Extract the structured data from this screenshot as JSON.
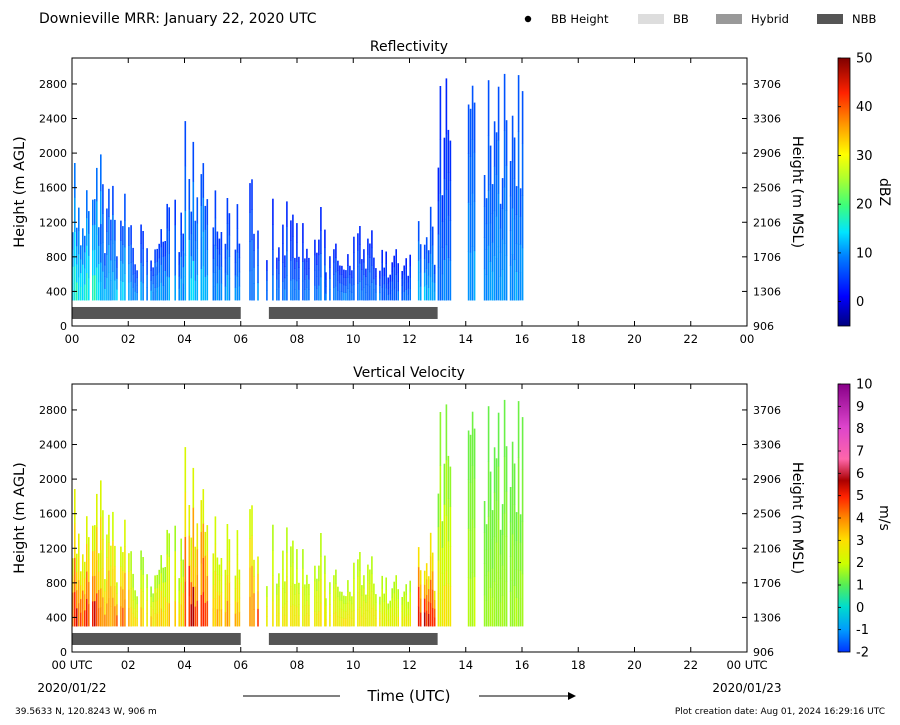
{
  "header": {
    "title": "Downieville MRR:  January 22, 2020 UTC",
    "legend": [
      {
        "label": "BB Height",
        "swatch": "dot",
        "color": "#000000"
      },
      {
        "label": "BB",
        "swatch": "rect",
        "color": "#dddddd"
      },
      {
        "label": "Hybrid",
        "swatch": "rect",
        "color": "#999999"
      },
      {
        "label": "NBB",
        "swatch": "rect",
        "color": "#555555"
      }
    ]
  },
  "footer": {
    "coords": "39.5633 N, 120.8243 W, 906 m",
    "created": "Plot creation date: Aug 01, 2024 16:29:16 UTC",
    "xlabel": "Time (UTC)",
    "start_date": "2020/01/22",
    "end_date": "2020/01/23"
  },
  "chart_data": [
    {
      "type": "heatmap",
      "title": "Reflectivity",
      "ylabel": "Height (m AGL)",
      "ylabel_right": "Height (m MSL)",
      "xlim": [
        0,
        24
      ],
      "ylim": [
        0,
        3100
      ],
      "x_ticks": [
        "00",
        "02",
        "04",
        "06",
        "08",
        "10",
        "12",
        "14",
        "16",
        "18",
        "20",
        "22",
        "00"
      ],
      "y_ticks": [
        0,
        400,
        800,
        1200,
        1600,
        2000,
        2400,
        2800
      ],
      "y_ticks_right": [
        906,
        1306,
        1706,
        2106,
        2506,
        2906,
        3306,
        3706
      ],
      "colorbar": {
        "label": "dBZ",
        "min": -5,
        "max": 50,
        "ticks": [
          0,
          10,
          20,
          30,
          40,
          50
        ]
      },
      "nbb_segments": [
        [
          0,
          6
        ],
        [
          7,
          13
        ]
      ],
      "echo_columns": [
        {
          "x": [
            0.0,
            1.0
          ],
          "top": 2050,
          "low": 6,
          "high": 18
        },
        {
          "x": [
            1.0,
            2.0
          ],
          "top": 1700,
          "low": 4,
          "high": 14
        },
        {
          "x": [
            2.0,
            3.0
          ],
          "top": 1250,
          "low": 3,
          "high": 12
        },
        {
          "x": [
            3.0,
            4.0
          ],
          "top": 1500,
          "low": 3,
          "high": 12
        },
        {
          "x": [
            4.0,
            5.0
          ],
          "top": 2500,
          "low": 4,
          "high": 15
        },
        {
          "x": [
            5.0,
            6.0
          ],
          "top": 1600,
          "low": 3,
          "high": 12
        },
        {
          "x": [
            6.3,
            6.6
          ],
          "top": 2100,
          "low": 3,
          "high": 11
        },
        {
          "x": [
            6.9,
            9.0
          ],
          "top": 1500,
          "low": 2,
          "high": 10
        },
        {
          "x": [
            9.0,
            11.0
          ],
          "top": 1200,
          "low": 2,
          "high": 10
        },
        {
          "x": [
            11.0,
            12.0
          ],
          "top": 900,
          "low": 2,
          "high": 9
        },
        {
          "x": [
            12.3,
            13.0
          ],
          "top": 1450,
          "low": 4,
          "high": 14
        },
        {
          "x": [
            13.0,
            13.5
          ],
          "top": 2900,
          "low": 2,
          "high": 10
        },
        {
          "x": [
            14.0,
            14.3
          ],
          "top": 3000,
          "low": 5,
          "high": 12
        },
        {
          "x": [
            14.5,
            16.0
          ],
          "top": 3000,
          "low": 5,
          "high": 12
        }
      ]
    },
    {
      "type": "heatmap",
      "title": "Vertical Velocity",
      "ylabel": "Height (m AGL)",
      "ylabel_right": "Height (m MSL)",
      "xlim": [
        0,
        24
      ],
      "ylim": [
        0,
        3100
      ],
      "x_ticks": [
        "00 UTC",
        "02",
        "04",
        "06",
        "08",
        "10",
        "12",
        "14",
        "16",
        "18",
        "20",
        "22",
        "00 UTC"
      ],
      "y_ticks": [
        0,
        400,
        800,
        1200,
        1600,
        2000,
        2400,
        2800
      ],
      "y_ticks_right": [
        906,
        1306,
        1706,
        2106,
        2506,
        2906,
        3306,
        3706
      ],
      "colorbar": {
        "label": "m/s",
        "min": -2,
        "max": 10,
        "ticks": [
          -2,
          -1,
          0,
          1,
          2,
          3,
          4,
          5,
          6,
          7,
          8,
          9,
          10
        ]
      },
      "nbb_segments": [
        [
          0,
          6
        ],
        [
          7,
          13
        ]
      ],
      "echo_columns": [
        {
          "x": [
            0.0,
            1.0
          ],
          "top": 2050,
          "low": 1.5,
          "high": 5.5
        },
        {
          "x": [
            1.0,
            2.0
          ],
          "top": 1700,
          "low": 1.5,
          "high": 4.5
        },
        {
          "x": [
            2.0,
            3.0
          ],
          "top": 1250,
          "low": 1.2,
          "high": 3.5
        },
        {
          "x": [
            3.0,
            4.0
          ],
          "top": 1500,
          "low": 1.2,
          "high": 3.5
        },
        {
          "x": [
            4.0,
            5.0
          ],
          "top": 2500,
          "low": 1.5,
          "high": 6.0
        },
        {
          "x": [
            5.0,
            6.0
          ],
          "top": 1600,
          "low": 1.5,
          "high": 4.0
        },
        {
          "x": [
            6.3,
            6.6
          ],
          "top": 2100,
          "low": 1.5,
          "high": 5.0
        },
        {
          "x": [
            6.9,
            9.0
          ],
          "top": 1500,
          "low": 1.5,
          "high": 3.0
        },
        {
          "x": [
            9.0,
            11.0
          ],
          "top": 1200,
          "low": 1.5,
          "high": 3.0
        },
        {
          "x": [
            11.0,
            12.0
          ],
          "top": 900,
          "low": 1.5,
          "high": 2.8
        },
        {
          "x": [
            12.3,
            13.0
          ],
          "top": 1450,
          "low": 2.0,
          "high": 6.0
        },
        {
          "x": [
            13.0,
            13.5
          ],
          "top": 2900,
          "low": 1.0,
          "high": 3.0
        },
        {
          "x": [
            14.0,
            14.3
          ],
          "top": 3000,
          "low": 1.0,
          "high": 2.0
        },
        {
          "x": [
            14.5,
            16.0
          ],
          "top": 3000,
          "low": 1.0,
          "high": 1.8
        }
      ]
    }
  ]
}
